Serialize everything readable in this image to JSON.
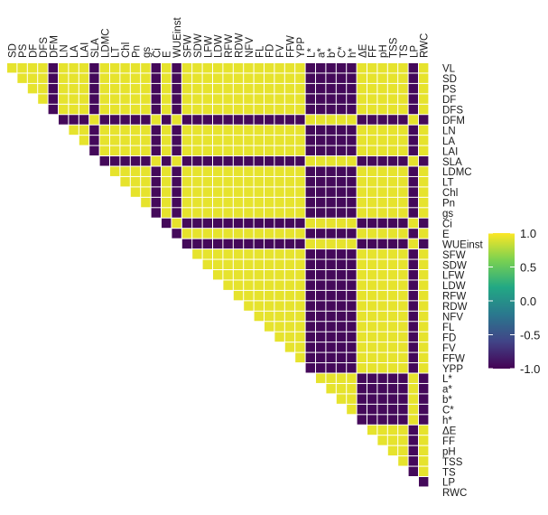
{
  "chart_data": {
    "type": "heatmap",
    "shape": "upper-triangle",
    "x_labels": [
      "SD",
      "PS",
      "DF",
      "DFS",
      "DFM",
      "LN",
      "LA",
      "LAI",
      "SLA",
      "LDMC",
      "LT",
      "Chl",
      "Pn",
      "gs",
      "Ci",
      "E",
      "WUEinst",
      "SFW",
      "SDW",
      "LFW",
      "LDW",
      "RFW",
      "RDW",
      "NFV",
      "FL",
      "FD",
      "FV",
      "FFW",
      "YPP",
      "L*",
      "a*",
      "b*",
      "C*",
      "h*",
      "ΔE",
      "FF",
      "pH",
      "TSS",
      "TS",
      "LP",
      "RWC"
    ],
    "y_labels": [
      "VL",
      "SD",
      "PS",
      "DF",
      "DFS",
      "DFM",
      "LN",
      "LA",
      "LAI",
      "SLA",
      "LDMC",
      "LT",
      "Chl",
      "Pn",
      "gs",
      "Ci",
      "E",
      "WUEinst",
      "SFW",
      "SDW",
      "LFW",
      "LDW",
      "RFW",
      "RDW",
      "NFV",
      "FL",
      "FD",
      "FV",
      "FFW",
      "YPP",
      "L*",
      "a*",
      "b*",
      "C*",
      "h*",
      "ΔE",
      "FF",
      "pH",
      "TSS",
      "TS",
      "LP",
      "RWC"
    ],
    "group_a": [
      "VL",
      "SD",
      "PS",
      "DF",
      "DFS",
      "LN",
      "LA",
      "LAI",
      "LDMC",
      "LT",
      "Chl",
      "Pn",
      "gs",
      "E",
      "SFW",
      "SDW",
      "LFW",
      "LDW",
      "RFW",
      "RDW",
      "NFV",
      "FL",
      "FD",
      "FV",
      "FFW",
      "YPP",
      "ΔE",
      "FF",
      "pH",
      "TSS",
      "TS",
      "RWC"
    ],
    "group_b": [
      "DFM",
      "SLA",
      "Ci",
      "WUEinst",
      "L*",
      "a*",
      "b*",
      "C*",
      "h*",
      "LP"
    ],
    "colorbar": {
      "title": "",
      "ticks": [
        "1.0",
        "0.5",
        "0.0",
        "-0.5",
        "-1.0"
      ],
      "tick_values": [
        1.0,
        0.5,
        0.0,
        -0.5,
        -1.0
      ],
      "range": [
        -1.0,
        1.0
      ]
    },
    "colors": [
      "#440154",
      "#414487",
      "#2a788e",
      "#22a884",
      "#7ad151",
      "#fde725"
    ]
  }
}
